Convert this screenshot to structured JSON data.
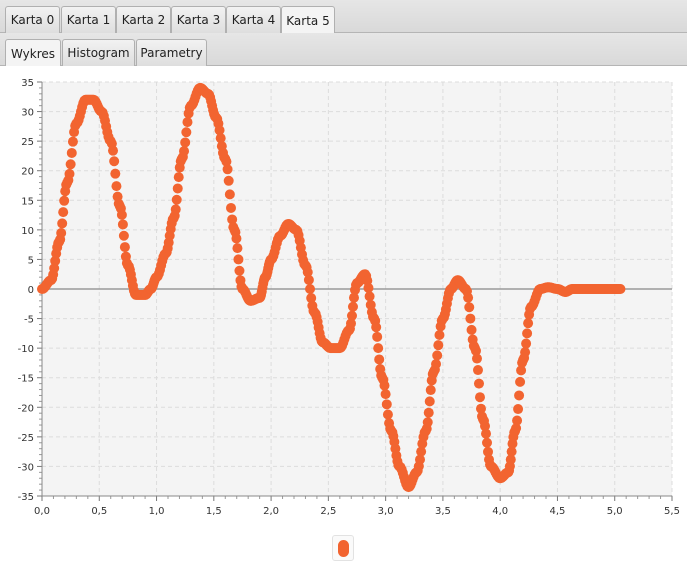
{
  "top_tabs": [
    {
      "label": "Karta 0",
      "active": false
    },
    {
      "label": "Karta 1",
      "active": false
    },
    {
      "label": "Karta 2",
      "active": false
    },
    {
      "label": "Karta 3",
      "active": false
    },
    {
      "label": "Karta 4",
      "active": false
    },
    {
      "label": "Karta 5",
      "active": true
    }
  ],
  "sub_tabs": [
    {
      "label": "Wykres",
      "active": true
    },
    {
      "label": "Histogram",
      "active": false
    },
    {
      "label": "Parametry",
      "active": false
    }
  ],
  "colors": {
    "series": "#f26430",
    "zero_line": "#999999",
    "plot_bg": "#f4f4f4",
    "grid": "#dcdcdc"
  },
  "chart_data": {
    "type": "scatter",
    "title": "",
    "xlabel": "",
    "ylabel": "",
    "xlim": [
      0,
      5.5
    ],
    "ylim": [
      -35,
      35
    ],
    "x_ticks": [
      "0,0",
      "0,5",
      "1,0",
      "1,5",
      "2,0",
      "2,5",
      "3,0",
      "3,5",
      "4,0",
      "4,5",
      "5,0",
      "5,5"
    ],
    "y_ticks": [
      "35",
      "30",
      "25",
      "20",
      "15",
      "10",
      "5",
      "0",
      "-5",
      "-10",
      "-15",
      "-20",
      "-25",
      "-30",
      "-35"
    ],
    "grid": true,
    "legend": "bottom-center",
    "series": [
      {
        "x": [
          0,
          0.08,
          0.15,
          0.22,
          0.3,
          0.38,
          0.45,
          0.52,
          0.6,
          0.68,
          0.75,
          0.82,
          0.9,
          0.95,
          1.0,
          1.08,
          1.15,
          1.22,
          1.3,
          1.38,
          1.45,
          1.52,
          1.6,
          1.68,
          1.75,
          1.82,
          1.9,
          1.95,
          2.0,
          2.08,
          2.15,
          2.22,
          2.3,
          2.38,
          2.45,
          2.52,
          2.6,
          2.68,
          2.75,
          2.82,
          2.9,
          2.97,
          3.05,
          3.12,
          3.2,
          3.27,
          3.35,
          3.42,
          3.5,
          3.57,
          3.63,
          3.7,
          3.78,
          3.85,
          3.92,
          4.0,
          4.07,
          4.13,
          4.2,
          4.27,
          4.35,
          4.42,
          4.5,
          4.57,
          4.63,
          4.7,
          4.78,
          4.85,
          4.92,
          5.0,
          5.05
        ],
        "y": [
          0,
          1.5,
          8,
          18,
          28,
          32,
          32,
          30,
          25,
          14,
          4,
          -1,
          -1,
          0,
          2,
          6,
          12,
          22,
          31,
          34,
          33,
          29,
          22,
          10,
          0,
          -2,
          -1.5,
          2,
          5,
          9,
          11,
          10,
          4,
          -4,
          -9,
          -10,
          -10,
          -7,
          1,
          2.5,
          -5,
          -15,
          -24,
          -30,
          -33.5,
          -31,
          -24,
          -14,
          -5,
          0,
          1.5,
          0,
          -10,
          -22,
          -30,
          -32,
          -31,
          -24,
          -12,
          -3,
          0,
          0.3,
          0,
          -0.5,
          0,
          0,
          0,
          0,
          0,
          0,
          0
        ]
      }
    ]
  }
}
